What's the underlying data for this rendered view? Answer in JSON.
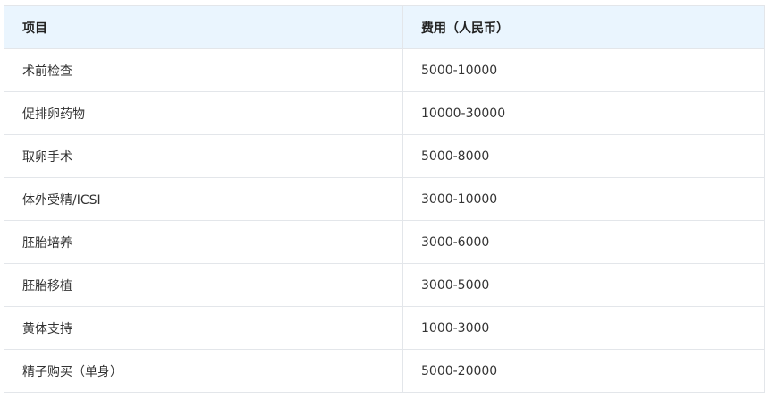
{
  "headers": [
    "项目",
    "费用（人民币）"
  ],
  "rows": [
    [
      "术前检查",
      "5000-10000"
    ],
    [
      "促排卵药物",
      "10000-30000"
    ],
    [
      "取卵手术",
      "5000-8000"
    ],
    [
      "体外受精/ICSI",
      "3000-10000"
    ],
    [
      "胚胎培养",
      "3000-6000"
    ],
    [
      "胚胎移植",
      "3000-5000"
    ],
    [
      "黄体支持",
      "1000-3000"
    ],
    [
      "精子购买（单身）",
      "5000-20000"
    ]
  ]
}
